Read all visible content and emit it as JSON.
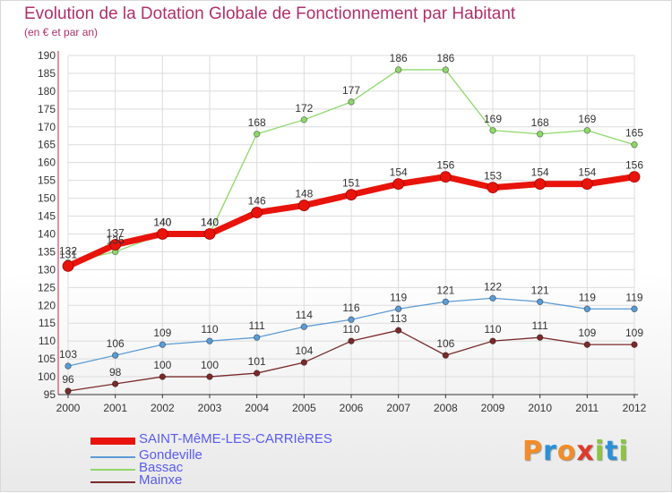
{
  "header": {
    "title": "Evolution de la Dotation Globale de Fonctionnement par Habitant",
    "subtitle": "(en € et par an)"
  },
  "logo": {
    "text": "Proxiti",
    "letters": [
      {
        "ch": "P",
        "color": "#f28c28"
      },
      {
        "ch": "r",
        "color": "#2c8fd8"
      },
      {
        "ch": "o",
        "color": "#f28c28"
      },
      {
        "ch": "x",
        "color": "#e0392b"
      },
      {
        "ch": "i",
        "color": "#8cc63f"
      },
      {
        "ch": "t",
        "color": "#2c8fd8"
      },
      {
        "ch": "i",
        "color": "#8cc63f"
      }
    ]
  },
  "chart_data": {
    "type": "line",
    "title": "Evolution de la Dotation Globale de Fonctionnement par Habitant",
    "subtitle": "(en € et par an)",
    "xlabel": "",
    "ylabel": "",
    "x": [
      "2000",
      "2001",
      "2002",
      "2003",
      "2004",
      "2005",
      "2006",
      "2007",
      "2008",
      "2009",
      "2010",
      "2011",
      "2012"
    ],
    "ylim": [
      95,
      190
    ],
    "yticks": [
      95,
      100,
      105,
      110,
      115,
      120,
      125,
      130,
      135,
      140,
      145,
      150,
      155,
      160,
      165,
      170,
      175,
      180,
      185,
      190
    ],
    "grid": true,
    "legend_position": "bottom-left",
    "series": [
      {
        "name": "SAINT-MêME-LES-CARRIèRES",
        "color": "#e8140b",
        "values": [
          131,
          137,
          140,
          140,
          146,
          148,
          151,
          154,
          156,
          153,
          154,
          154,
          156
        ]
      },
      {
        "name": "Gondeville",
        "color": "#5b9bd5",
        "values": [
          103,
          106,
          109,
          110,
          111,
          114,
          116,
          119,
          121,
          122,
          121,
          119,
          119
        ]
      },
      {
        "name": "Bassac",
        "color": "#8ed86a",
        "values": [
          132,
          135,
          140,
          140,
          168,
          172,
          177,
          186,
          186,
          169,
          168,
          169,
          165
        ]
      },
      {
        "name": "Mainxe",
        "color": "#7a2a2a",
        "values": [
          96,
          98,
          100,
          100,
          101,
          104,
          110,
          113,
          106,
          110,
          111,
          109,
          109
        ]
      }
    ]
  }
}
